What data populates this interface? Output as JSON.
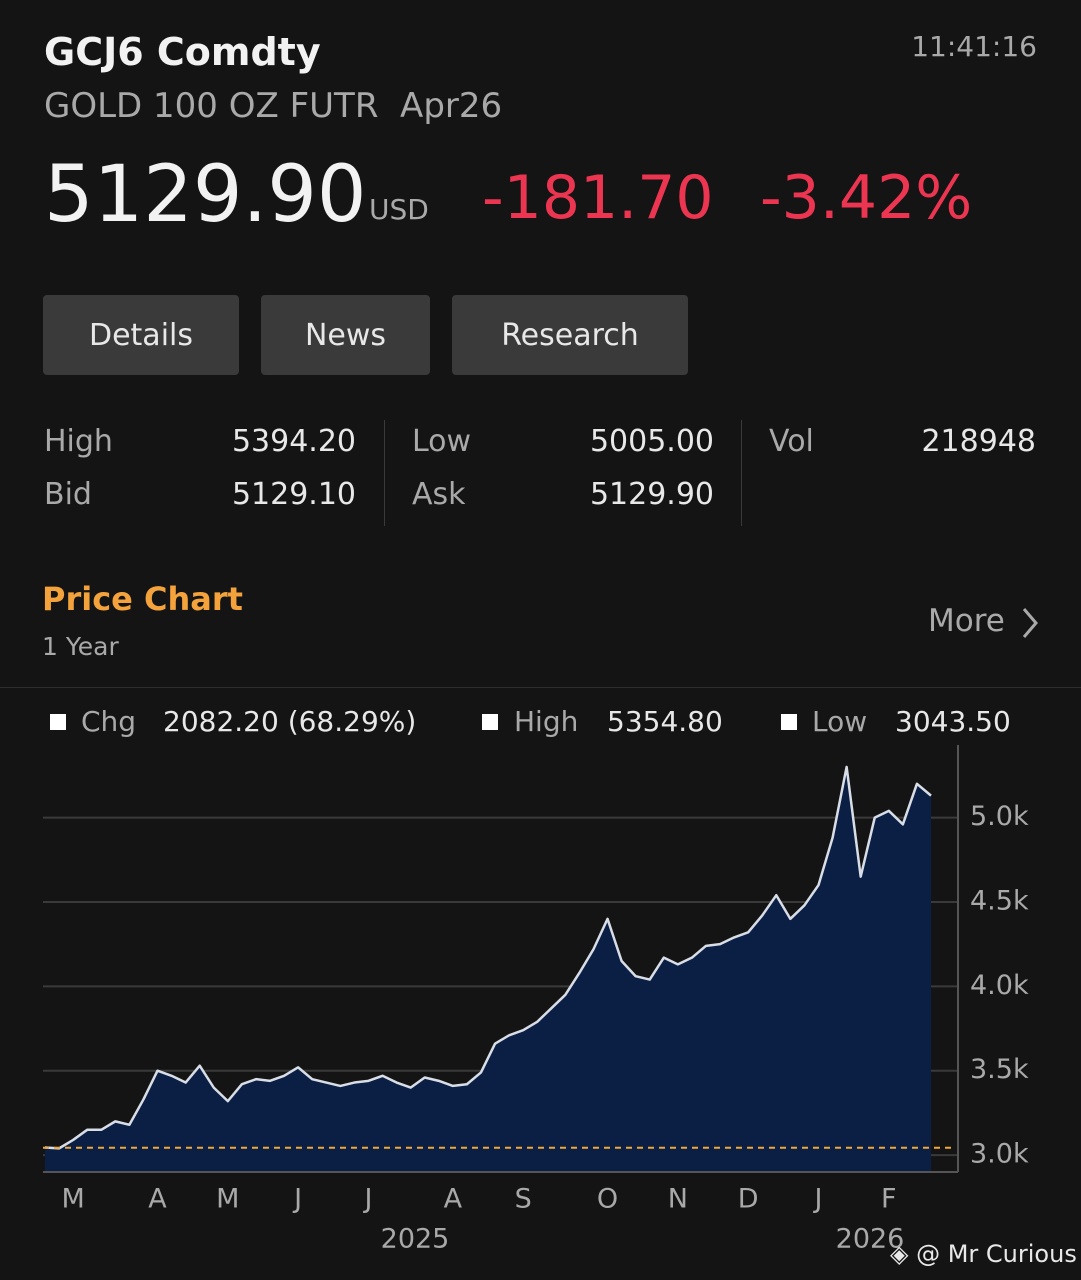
{
  "header": {
    "ticker": "GCJ6 Comdty",
    "time": "11:41:16",
    "description": "GOLD 100 OZ FUTR  Apr26",
    "price": "5129.90",
    "currency": "USD",
    "change": "-181.70",
    "change_pct": "-3.42%"
  },
  "tabs": [
    "Details",
    "News",
    "Research"
  ],
  "stats": {
    "high": {
      "label": "High",
      "value": "5394.20"
    },
    "low": {
      "label": "Low",
      "value": "5005.00"
    },
    "vol": {
      "label": "Vol",
      "value": "218948"
    },
    "bid": {
      "label": "Bid",
      "value": "5129.10"
    },
    "ask": {
      "label": "Ask",
      "value": "5129.90"
    }
  },
  "chart_section": {
    "title": "Price Chart",
    "period": "1 Year",
    "more": "More"
  },
  "chart_summary": [
    {
      "label": "Chg",
      "value": "2082.20 (68.29%)"
    },
    {
      "label": "High",
      "value": "5354.80"
    },
    {
      "label": "Low",
      "value": "3043.50"
    }
  ],
  "chart_data": {
    "type": "area",
    "categories": [
      null,
      null,
      "M",
      null,
      null,
      null,
      null,
      null,
      "A",
      null,
      null,
      null,
      null,
      "M",
      null,
      null,
      null,
      null,
      "J",
      null,
      null,
      null,
      null,
      "J",
      null,
      null,
      null,
      null,
      null,
      "A",
      null,
      null,
      null,
      null,
      "S",
      null,
      null,
      null,
      null,
      null,
      "O",
      null,
      null,
      null,
      null,
      "N",
      null,
      null,
      null,
      null,
      "D",
      null,
      null,
      null,
      null,
      "J",
      null,
      null,
      null,
      null,
      "F",
      null,
      null,
      null
    ],
    "x_group_labels": [
      "2025",
      "2026"
    ],
    "values": [
      3045,
      3040,
      3090,
      3150,
      3150,
      3200,
      3180,
      3330,
      3500,
      3470,
      3430,
      3530,
      3400,
      3320,
      3420,
      3450,
      3440,
      3470,
      3520,
      3450,
      3430,
      3410,
      3430,
      3440,
      3470,
      3430,
      3400,
      3460,
      3440,
      3410,
      3420,
      3490,
      3660,
      3710,
      3740,
      3790,
      3870,
      3950,
      4080,
      4220,
      4400,
      4150,
      4060,
      4040,
      4170,
      4130,
      4170,
      4240,
      4250,
      4290,
      4320,
      4420,
      4540,
      4400,
      4480,
      4600,
      4880,
      5300,
      4650,
      5000,
      5040,
      4960,
      5200,
      5130
    ],
    "color": "#0b1f44",
    "line_color": "#d9dde6",
    "reference_line": 3043.5,
    "reference_color": "#f0a83a",
    "ylim": [
      2900,
      5430
    ],
    "yticks": [
      {
        "value": 3000,
        "label": "3.0k"
      },
      {
        "value": 3500,
        "label": "3.5k"
      },
      {
        "value": 4000,
        "label": "4.0k"
      },
      {
        "value": 4500,
        "label": "4.5k"
      },
      {
        "value": 5000,
        "label": "5.0k"
      }
    ],
    "grid": true
  },
  "watermark": "@ Mr Curious"
}
